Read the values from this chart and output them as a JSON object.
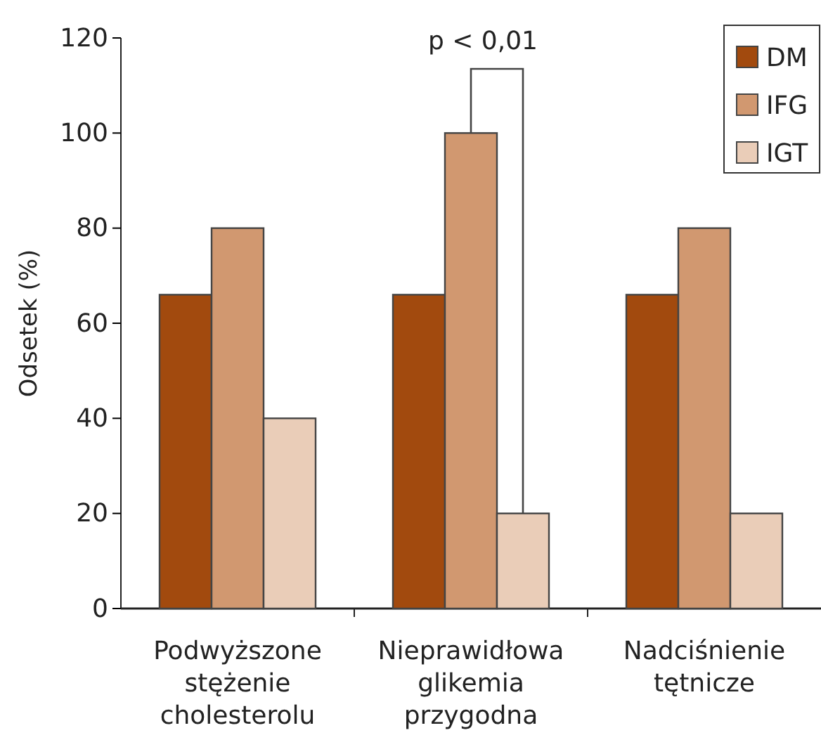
{
  "chart_data": {
    "type": "bar",
    "ylabel": "Odsetek (%)",
    "categories": [
      "Podwyższone stężenie cholesterolu",
      "Nieprawidłowa glikemia przygodna",
      "Nadciśnienie tętnicze"
    ],
    "series": [
      {
        "name": "DM",
        "color": "#a24a0e",
        "values": [
          66,
          66,
          66
        ]
      },
      {
        "name": "IFG",
        "color": "#d19870",
        "values": [
          80,
          100,
          80
        ]
      },
      {
        "name": "IGT",
        "color": "#eacdb8",
        "values": [
          40,
          20,
          20
        ]
      }
    ],
    "ylim": [
      0,
      120
    ],
    "yticks": [
      0,
      20,
      40,
      60,
      80,
      100,
      120
    ],
    "annotations": [
      "p < 0,01"
    ],
    "legend": "top right"
  }
}
